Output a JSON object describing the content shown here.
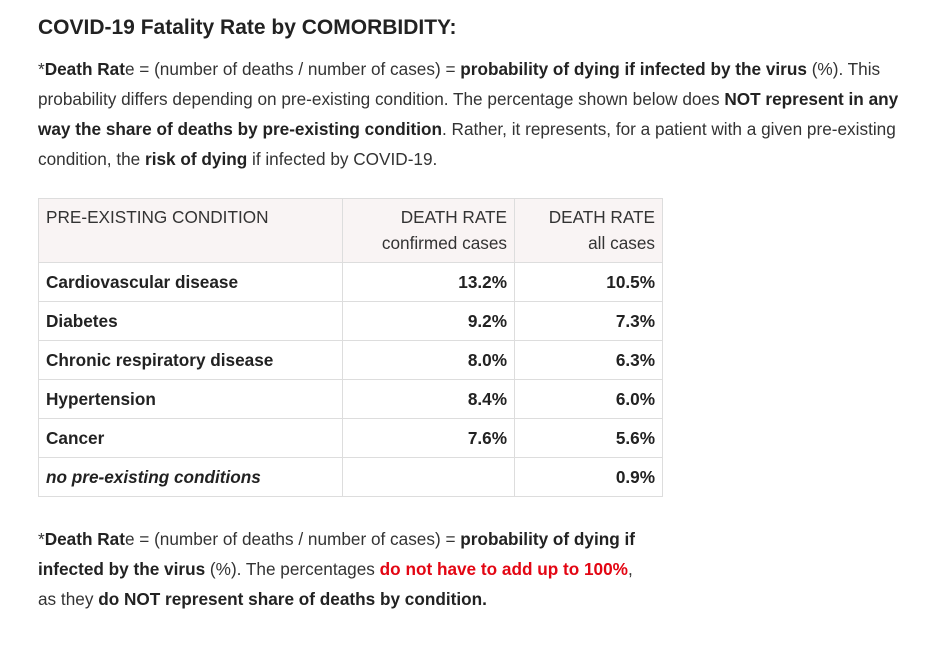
{
  "heading": "COVID-19 Fatality Rate by COMORBIDITY:",
  "intro": [
    {
      "t": "*",
      "s": "normal"
    },
    {
      "t": "Death Rat",
      "s": "bold"
    },
    {
      "t": "e = (number of deaths / number of cases) = ",
      "s": "normal"
    },
    {
      "t": "probability of dying if infected by the virus",
      "s": "bold"
    },
    {
      "t": " (%). This probability differs depending on pre-existing condition. The percentage shown below does ",
      "s": "normal"
    },
    {
      "t": "NOT represent in any way the share of deaths by pre-existing condition",
      "s": "bold"
    },
    {
      "t": ". Rather, it represents, for a patient with a given pre-existing condition, the ",
      "s": "normal"
    },
    {
      "t": "risk of dying",
      "s": "bold"
    },
    {
      "t": " if infected by COVID-19.",
      "s": "normal"
    }
  ],
  "table": {
    "headers": {
      "condition": "PRE-EXISTING CONDITION",
      "confirmed_line1": "DEATH RATE",
      "confirmed_line2": "confirmed cases",
      "all_line1": "DEATH RATE",
      "all_line2": "all cases"
    },
    "rows": [
      {
        "condition": "Cardiovascular disease",
        "confirmed": "13.2%",
        "all": "10.5%",
        "italic": false
      },
      {
        "condition": "Diabetes",
        "confirmed": "9.2%",
        "all": "7.3%",
        "italic": false
      },
      {
        "condition": "Chronic respiratory disease",
        "confirmed": "8.0%",
        "all": "6.3%",
        "italic": false
      },
      {
        "condition": "Hypertension",
        "confirmed": "8.4%",
        "all": "6.0%",
        "italic": false
      },
      {
        "condition": "Cancer",
        "confirmed": "7.6%",
        "all": "5.6%",
        "italic": false
      },
      {
        "condition": "no pre-existing conditions",
        "confirmed": "",
        "all": "0.9%",
        "italic": true
      }
    ]
  },
  "footnote": [
    {
      "t": "*",
      "s": "normal"
    },
    {
      "t": "Death Rat",
      "s": "bold"
    },
    {
      "t": "e = (number of deaths / number of cases) = ",
      "s": "normal"
    },
    {
      "t": "probability of dying if infected by the virus",
      "s": "bold"
    },
    {
      "t": " (%). The percentages ",
      "s": "normal"
    },
    {
      "t": "do not have to add up to 100%",
      "s": "red"
    },
    {
      "t": ", as they ",
      "s": "normal"
    },
    {
      "t": "do NOT represent share of deaths by condition.",
      "s": "bold"
    }
  ],
  "colors": {
    "text": "#333333",
    "emphasis": "#222222",
    "warning_red": "#e30613",
    "header_bg": "#f9f4f4",
    "border": "#dddddd"
  }
}
